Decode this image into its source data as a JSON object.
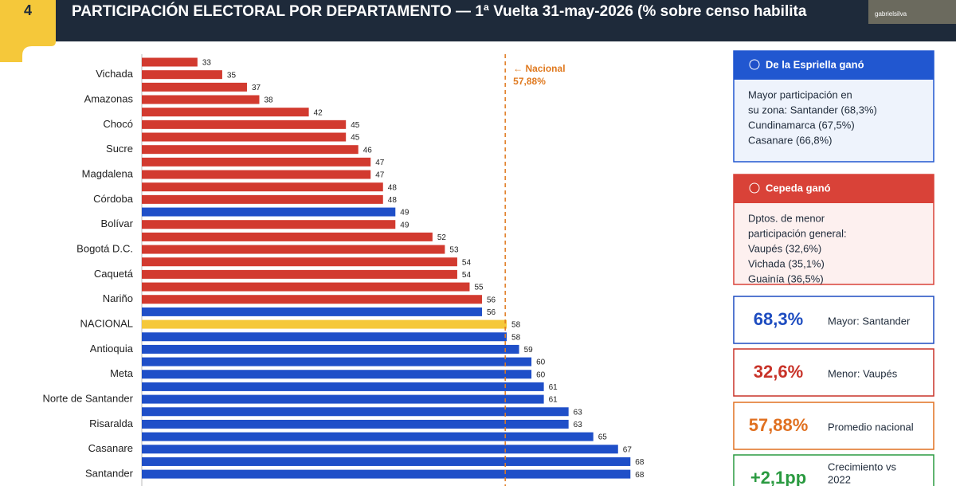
{
  "slide_number": "4",
  "webcam_label": "gabrielsilva",
  "chart_data": {
    "type": "bar",
    "orientation": "horizontal",
    "title": "PARTICIPACIÓN ELECTORAL POR DEPARTAMENTO — 1ª Vuelta 31-may-2026 (% sobre censo habilita",
    "categories": [
      null,
      "Vichada",
      null,
      "Amazonas",
      null,
      "Chocó",
      null,
      "Sucre",
      null,
      "Magdalena",
      null,
      "Córdoba",
      null,
      "Bolívar",
      null,
      "Bogotá D.C.",
      null,
      "Caquetá",
      null,
      "Nariño",
      null,
      "NACIONAL",
      null,
      "Antioquia",
      null,
      "Meta",
      null,
      "Norte de Santander",
      null,
      "Risaralda",
      null,
      "Casanare",
      null,
      "Santander"
    ],
    "values": [
      33,
      35,
      37,
      38,
      42,
      45,
      45,
      46,
      47,
      47,
      48,
      48,
      49,
      49,
      52,
      53,
      54,
      54,
      55,
      56,
      56,
      58,
      58,
      59,
      60,
      60,
      61,
      61,
      63,
      63,
      65,
      67,
      68,
      68
    ],
    "colors": [
      "#d23a2f",
      "#d23a2f",
      "#d23a2f",
      "#d23a2f",
      "#d23a2f",
      "#d23a2f",
      "#d23a2f",
      "#d23a2f",
      "#d23a2f",
      "#d23a2f",
      "#d23a2f",
      "#d23a2f",
      "#1f4fc8",
      "#d23a2f",
      "#d23a2f",
      "#d23a2f",
      "#d23a2f",
      "#d23a2f",
      "#d23a2f",
      "#d23a2f",
      "#1f4fc8",
      "#f5c83a",
      "#1f4fc8",
      "#1f4fc8",
      "#1f4fc8",
      "#1f4fc8",
      "#1f4fc8",
      "#1f4fc8",
      "#1f4fc8",
      "#1f4fc8",
      "#1f4fc8",
      "#1f4fc8",
      "#1f4fc8",
      "#1f4fc8"
    ],
    "xlim": [
      28.5,
      75
    ],
    "reference_line": {
      "value": 57.88,
      "label": "← Nacional",
      "value_label": "57,88%",
      "color": "#e07a20"
    }
  },
  "panels": [
    {
      "title": "De la Espriella ganó",
      "color": "#2157d0",
      "dot": "#1f4fc8",
      "background": "#eef3fc",
      "lines": [
        "Mayor participación en",
        "su zona: Santander (68,3%)",
        "Cundinamarca (67,5%)",
        "Casanare (66,8%)"
      ]
    },
    {
      "title": "Cepeda ganó",
      "color": "#d94238",
      "dot": "#d23a2f",
      "background": "#fdf0ef",
      "lines": [
        "Dptos. de menor",
        "participación general:",
        "Vaupés (32,6%)",
        "Vichada (35,1%)",
        "Guainía (36,5%)"
      ]
    }
  ],
  "stats": [
    {
      "value": "68,3%",
      "label": [
        "Mayor: Santander"
      ],
      "color": "#1d4cc0"
    },
    {
      "value": "32,6%",
      "label": [
        "Menor: Vaupés"
      ],
      "color": "#c83228"
    },
    {
      "value": "57,88%",
      "label": [
        "Promedio nacional"
      ],
      "color": "#e07020"
    },
    {
      "value": "+2,1pp",
      "label": [
        "Crecimiento vs",
        "2022"
      ],
      "color": "#2a9a40"
    }
  ]
}
